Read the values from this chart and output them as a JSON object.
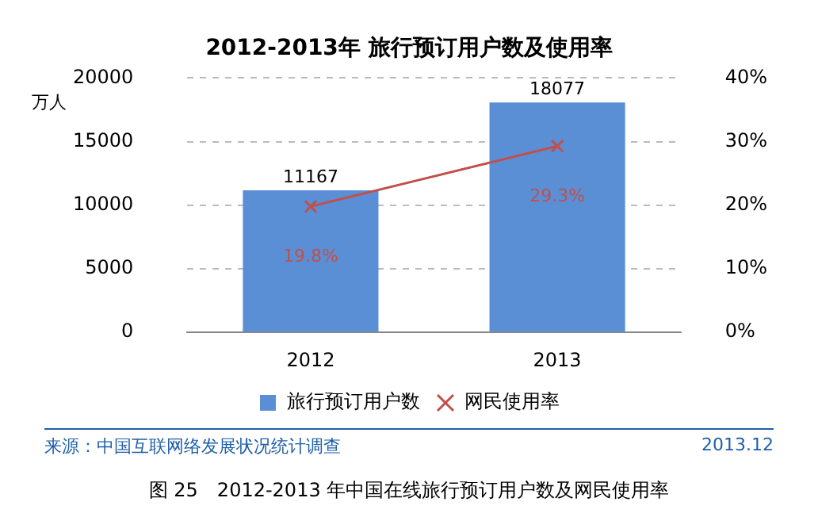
{
  "chart_data": {
    "type": "bar",
    "title": "2012-2013年 旅行预订用户数及使用率",
    "ylabel": "万人",
    "categories": [
      "2012",
      "2013"
    ],
    "series": [
      {
        "name": "旅行预订用户数",
        "color": "#5b8fd5",
        "values": [
          11167,
          18077
        ],
        "value_labels": [
          "11167",
          "18077"
        ]
      },
      {
        "name": "网民使用率",
        "type": "line",
        "axis": "y2",
        "color": "#c0504d",
        "values": [
          19.8,
          29.3
        ],
        "value_labels": [
          "19.8%",
          "29.3%"
        ],
        "marker": "cross"
      }
    ],
    "ylim": [
      0,
      20000
    ],
    "yticks": [
      0,
      5000,
      10000,
      15000,
      20000
    ],
    "y2lim": [
      0,
      40
    ],
    "y2ticks": [
      {
        "value": 0,
        "label": "0%"
      },
      {
        "value": 10,
        "label": "10%"
      },
      {
        "value": 20,
        "label": "20%"
      },
      {
        "value": 30,
        "label": "30%"
      },
      {
        "value": 40,
        "label": "40%"
      }
    ],
    "grid": "y",
    "legend": "bottom",
    "annotations": [
      "来源：中国互联网络发展状况统计调查",
      "2013.12",
      "图 25　2012-2013 年中国在线旅行预订用户数及网民使用率"
    ]
  }
}
